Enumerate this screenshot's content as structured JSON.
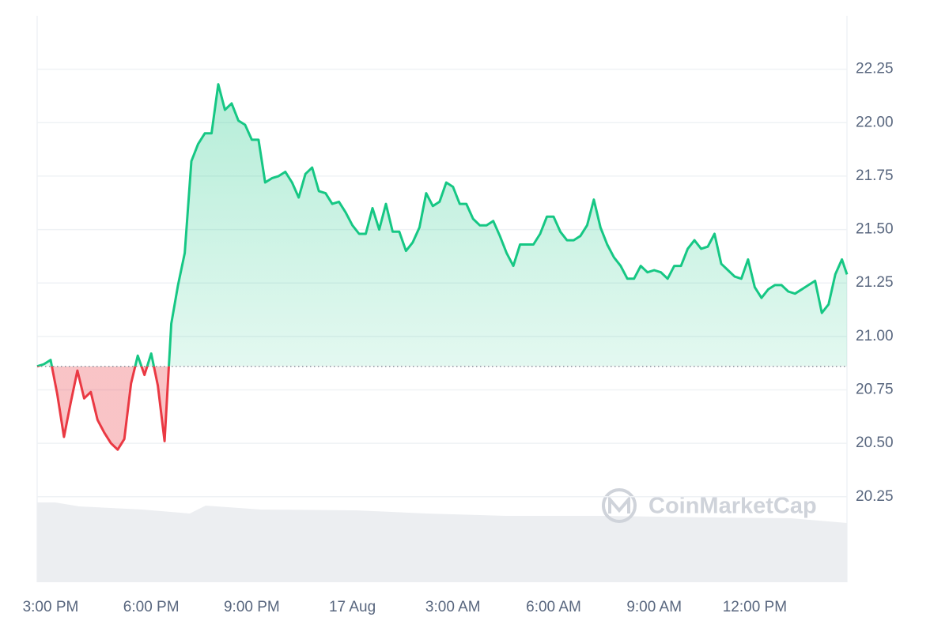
{
  "chart_data": {
    "type": "line",
    "watermark": "CoinMarketCap",
    "x": [
      -0.4,
      -0.2,
      0,
      0.2,
      0.4,
      0.6,
      0.8,
      1,
      1.2,
      1.4,
      1.6,
      1.8,
      2,
      2.2,
      2.4,
      2.6,
      2.8,
      3,
      3.2,
      3.4,
      3.6,
      3.8,
      4,
      4.2,
      4.4,
      4.6,
      4.8,
      5,
      5.2,
      5.4,
      5.6,
      5.8,
      6,
      6.2,
      6.4,
      6.6,
      6.8,
      7,
      7.2,
      7.4,
      7.6,
      7.8,
      8,
      8.2,
      8.4,
      8.6,
      8.8,
      9,
      9.2,
      9.4,
      9.6,
      9.8,
      10,
      10.2,
      10.4,
      10.6,
      10.8,
      11,
      11.2,
      11.4,
      11.6,
      11.8,
      12,
      12.2,
      12.4,
      12.6,
      12.8,
      13,
      13.2,
      13.4,
      13.6,
      13.8,
      14,
      14.2,
      14.4,
      14.6,
      14.8,
      15,
      15.2,
      15.4,
      15.6,
      15.8,
      16,
      16.2,
      16.4,
      16.6,
      16.8,
      17,
      17.2,
      17.4,
      17.6,
      17.8,
      18,
      18.2,
      18.4,
      18.6,
      18.8,
      19,
      19.2,
      19.4,
      19.6,
      19.8,
      20,
      20.2,
      20.4,
      20.6,
      20.8,
      21,
      21.2,
      21.4,
      21.6,
      21.8,
      22,
      22.2,
      22.4,
      22.6,
      22.8,
      23,
      23.2,
      23.4,
      23.6,
      23.75
    ],
    "values": [
      20.86,
      20.87,
      20.89,
      20.73,
      20.53,
      20.69,
      20.84,
      20.71,
      20.74,
      20.61,
      20.55,
      20.5,
      20.47,
      20.52,
      20.78,
      20.91,
      20.82,
      20.92,
      20.77,
      20.51,
      21.06,
      21.24,
      21.39,
      21.82,
      21.9,
      21.95,
      21.95,
      22.18,
      22.06,
      22.09,
      22.01,
      21.99,
      21.92,
      21.92,
      21.72,
      21.74,
      21.75,
      21.77,
      21.72,
      21.65,
      21.76,
      21.79,
      21.68,
      21.67,
      21.62,
      21.63,
      21.58,
      21.52,
      21.48,
      21.48,
      21.6,
      21.5,
      21.62,
      21.49,
      21.49,
      21.4,
      21.44,
      21.51,
      21.67,
      21.61,
      21.63,
      21.72,
      21.7,
      21.62,
      21.62,
      21.55,
      21.52,
      21.52,
      21.54,
      21.47,
      21.39,
      21.33,
      21.43,
      21.43,
      21.43,
      21.48,
      21.56,
      21.56,
      21.49,
      21.45,
      21.45,
      21.47,
      21.52,
      21.64,
      21.51,
      21.43,
      21.37,
      21.33,
      21.27,
      21.27,
      21.33,
      21.3,
      21.31,
      21.3,
      21.27,
      21.33,
      21.33,
      21.41,
      21.45,
      21.41,
      21.42,
      21.48,
      21.34,
      21.31,
      21.28,
      21.27,
      21.36,
      21.23,
      21.18,
      21.22,
      21.24,
      21.24,
      21.21,
      21.2,
      21.22,
      21.24,
      21.26,
      21.11,
      21.15,
      21.29,
      21.36,
      21.29
    ],
    "baseline": 20.86,
    "color": "#16c784",
    "below_color": "#ea3943",
    "xlim": [
      -0.4,
      23.75
    ],
    "xticks": [
      {
        "value": 0,
        "label": "3:00 PM"
      },
      {
        "value": 3,
        "label": "6:00 PM"
      },
      {
        "value": 6,
        "label": "9:00 PM"
      },
      {
        "value": 9,
        "label": "17 Aug"
      },
      {
        "value": 12,
        "label": "3:00 AM"
      },
      {
        "value": 15,
        "label": "6:00 AM"
      },
      {
        "value": 18,
        "label": "9:00 AM"
      },
      {
        "value": 21,
        "label": "12:00 PM"
      }
    ],
    "ylim": [
      19.85,
      22.5
    ],
    "yticks": [
      20.25,
      {
        "value": 20.5,
        "label": "20.50"
      },
      20.75,
      {
        "value": 21,
        "label": "21.00"
      },
      21.25,
      {
        "value": 21.5,
        "label": "21.50"
      },
      21.75,
      {
        "value": 22,
        "label": "22.00"
      },
      22.25
    ],
    "grid": true
  }
}
